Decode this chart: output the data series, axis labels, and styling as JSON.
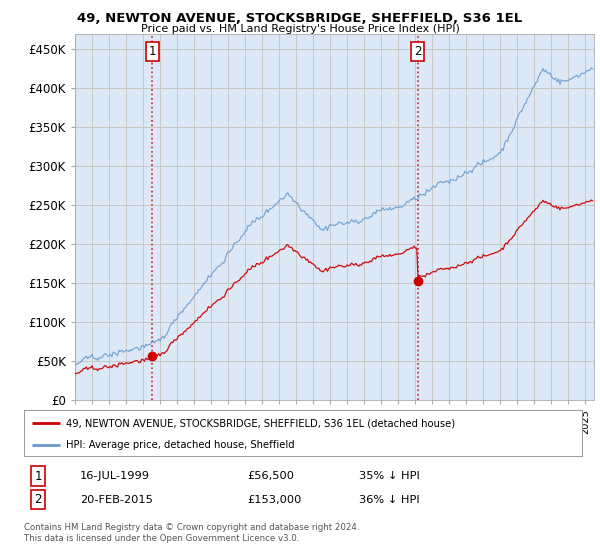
{
  "title": "49, NEWTON AVENUE, STOCKSBRIDGE, SHEFFIELD, S36 1EL",
  "subtitle": "Price paid vs. HM Land Registry's House Price Index (HPI)",
  "ylim": [
    0,
    470000
  ],
  "yticks": [
    0,
    50000,
    100000,
    150000,
    200000,
    250000,
    300000,
    350000,
    400000,
    450000
  ],
  "ytick_labels": [
    "£0",
    "£50K",
    "£100K",
    "£150K",
    "£200K",
    "£250K",
    "£300K",
    "£350K",
    "£400K",
    "£450K"
  ],
  "background_color": "#ffffff",
  "plot_background": "#dce8f5",
  "grid_color": "#c8c8c8",
  "hpi_color": "#6699cc",
  "price_color": "#cc0000",
  "transaction1_year": 1999.54,
  "transaction1_price": 56500,
  "transaction1_label": "1",
  "transaction1_date": "16-JUL-1999",
  "transaction1_pct": "35% ↓ HPI",
  "transaction2_year": 2015.13,
  "transaction2_price": 153000,
  "transaction2_label": "2",
  "transaction2_date": "20-FEB-2015",
  "transaction2_pct": "36% ↓ HPI",
  "legend_entry1": "49, NEWTON AVENUE, STOCKSBRIDGE, SHEFFIELD, S36 1EL (detached house)",
  "legend_entry2": "HPI: Average price, detached house, Sheffield",
  "footer1": "Contains HM Land Registry data © Crown copyright and database right 2024.",
  "footer2": "This data is licensed under the Open Government Licence v3.0.",
  "dashed_vline_color": "#cc0000",
  "xlim_left": 1995.0,
  "xlim_right": 2025.5
}
